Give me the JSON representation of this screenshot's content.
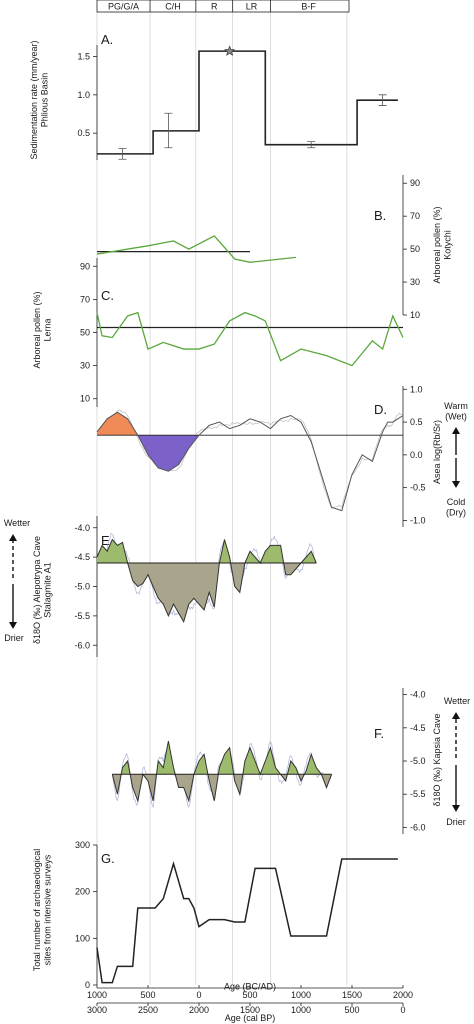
{
  "periods": [
    "PG/G/A",
    "C/H",
    "R",
    "LR",
    "B-F"
  ],
  "period_bounds_ad": [
    -1000,
    -480,
    -31,
    330,
    700,
    1450
  ],
  "x_axis": {
    "top_label": "Age (BC/AD)",
    "top_ticks": [
      "1000",
      "500",
      "0",
      "500",
      "1000",
      "1500",
      "2000"
    ],
    "top_tick_values_ad": [
      -1000,
      -500,
      0,
      500,
      1000,
      1500,
      2000
    ],
    "bottom_label": "Age (cal BP)",
    "bottom_ticks": [
      "3000",
      "2500",
      "2000",
      "1500",
      "1000",
      "500",
      "0"
    ]
  },
  "indicators": {
    "warm": "Warm\n(Wet)",
    "cold": "Cold\n(Dry)",
    "wetter": "Wetter",
    "drier": "Drier"
  },
  "colors": {
    "green_line": "#5aa83c",
    "green_fill": "#9cbb6c",
    "grey_fill": "#a8a58c",
    "warm_fill": "#f08a56",
    "cold_fill": "#7c62c8",
    "blue_trace": "#a7afd6"
  },
  "chart_data": [
    {
      "id": "A",
      "label": "A.",
      "type": "line",
      "ylabel": "Sedimentation rate (mm/year)\nPhlious Basin",
      "yticks": [
        0.5,
        1.0,
        1.5
      ],
      "ytick_labels": [
        "0.5",
        "1.0",
        "1.5"
      ],
      "ylim": [
        0.15,
        1.65
      ],
      "steps": [
        {
          "x0": -1000,
          "x1": -450,
          "y": 0.23
        },
        {
          "x0": -450,
          "x1": 0,
          "y": 0.53
        },
        {
          "x0": 0,
          "x1": 650,
          "y": 1.57
        },
        {
          "x0": 650,
          "x1": 1550,
          "y": 0.35
        },
        {
          "x0": 1550,
          "x1": 1950,
          "y": 0.93
        }
      ],
      "errorbars": [
        {
          "x": -750,
          "y": 0.23,
          "lo": 0.16,
          "hi": 0.3
        },
        {
          "x": -300,
          "y": 0.53,
          "lo": 0.31,
          "hi": 0.76
        },
        {
          "x": 1100,
          "y": 0.35,
          "lo": 0.31,
          "hi": 0.39
        },
        {
          "x": 1800,
          "y": 0.93,
          "lo": 0.86,
          "hi": 1.0
        }
      ],
      "marker": {
        "x": 300,
        "y": 1.57
      }
    },
    {
      "id": "B",
      "label": "B.",
      "type": "line",
      "ylabel": "Arboreal pollen (%)\nKotychi",
      "yticks": [
        10,
        30,
        50,
        70,
        90
      ],
      "ytick_labels": [
        "10",
        "30",
        "50",
        "70",
        "90"
      ],
      "ylim": [
        10,
        95
      ],
      "x": [
        -1000,
        -500,
        -250,
        -100,
        150,
        350,
        500,
        950
      ],
      "y": [
        47,
        52,
        55,
        50,
        58,
        44,
        42,
        45
      ],
      "hline": 48.5
    },
    {
      "id": "C",
      "label": "C.",
      "type": "line",
      "ylabel": "Arboreal pollen (%)\nLerna",
      "yticks": [
        10,
        30,
        50,
        70,
        90
      ],
      "ytick_labels": [
        "10",
        "30",
        "50",
        "70",
        "90"
      ],
      "ylim": [
        5,
        95
      ],
      "x": [
        -1000,
        -950,
        -850,
        -700,
        -600,
        -500,
        -350,
        -150,
        0,
        150,
        300,
        450,
        550,
        650,
        800,
        1000,
        1250,
        1500,
        1700,
        1800,
        1900,
        2000
      ],
      "y": [
        62,
        48,
        47,
        60,
        62,
        40,
        44,
        40,
        40,
        43,
        57,
        62,
        60,
        57,
        33,
        40,
        36,
        30,
        45,
        40,
        60,
        47
      ],
      "hline": 53
    },
    {
      "id": "D",
      "label": "D.",
      "type": "area",
      "ylabel": "Asea log(Rb/Sr)",
      "yticks": [
        -1.0,
        -0.5,
        0.0,
        0.5,
        1.0
      ],
      "ytick_labels": [
        "-1.0",
        "-0.5",
        "0.0",
        "0.5",
        "1.0"
      ],
      "ylim": [
        -1.1,
        1.05
      ],
      "x": [
        -1000,
        -900,
        -800,
        -700,
        -600,
        -500,
        -400,
        -300,
        -200,
        -100,
        0,
        100,
        200,
        300,
        400,
        500,
        600,
        700,
        800,
        900,
        1000,
        1100,
        1200,
        1300,
        1400,
        1500,
        1600,
        1700,
        1800,
        1850,
        1900,
        1950,
        2000
      ],
      "y": [
        0.35,
        0.55,
        0.65,
        0.55,
        0.3,
        0.0,
        -0.2,
        -0.25,
        -0.15,
        0.1,
        0.3,
        0.45,
        0.5,
        0.4,
        0.45,
        0.55,
        0.5,
        0.4,
        0.55,
        0.6,
        0.5,
        0.2,
        -0.3,
        -0.8,
        -0.85,
        -0.3,
        0.0,
        -0.1,
        0.35,
        0.5,
        0.5,
        0.55,
        0.6
      ],
      "hline": 0.3
    },
    {
      "id": "E",
      "label": "E.",
      "type": "area",
      "ylabel": "δ18O (‰) Alepotrypa Cave\nStalagmite A1",
      "yticks": [
        -6.0,
        -5.5,
        -5.0,
        -4.5,
        -4.0
      ],
      "ytick_labels": [
        "-6.0",
        "-5.5",
        "-5.0",
        "-4.5",
        "-4.0"
      ],
      "ylim": [
        -6.2,
        -3.8
      ],
      "x": [
        -1000,
        -950,
        -900,
        -850,
        -800,
        -750,
        -700,
        -650,
        -600,
        -550,
        -500,
        -450,
        -400,
        -350,
        -300,
        -250,
        -200,
        -150,
        -100,
        -50,
        0,
        50,
        100,
        150,
        200,
        250,
        300,
        350,
        400,
        450,
        500,
        550,
        600,
        650,
        700,
        750,
        800,
        850,
        900,
        950,
        1000,
        1050,
        1100,
        1150
      ],
      "y": [
        -4.5,
        -4.3,
        -4.4,
        -4.2,
        -4.3,
        -4.25,
        -4.6,
        -4.9,
        -5.0,
        -4.95,
        -4.8,
        -5.0,
        -5.2,
        -5.3,
        -5.5,
        -5.3,
        -5.45,
        -5.6,
        -5.3,
        -5.2,
        -5.3,
        -5.4,
        -5.1,
        -5.35,
        -4.6,
        -4.2,
        -4.5,
        -5.0,
        -5.1,
        -4.6,
        -4.4,
        -4.5,
        -4.6,
        -4.4,
        -4.3,
        -4.3,
        -4.3,
        -4.8,
        -4.8,
        -4.7,
        -4.6,
        -4.5,
        -4.4,
        -4.6
      ],
      "hline": -4.6
    },
    {
      "id": "F",
      "label": "F.",
      "type": "area",
      "ylabel": "δ18O (‰) Kapsia Cave",
      "yticks": [
        -6.0,
        -5.5,
        -5.0,
        -4.5,
        -4.0
      ],
      "ytick_labels": [
        "-6.0",
        "-5.5",
        "-5.0",
        "-4.5",
        "-4.0"
      ],
      "ylim": [
        -6.1,
        -3.9
      ],
      "x": [
        -850,
        -800,
        -750,
        -700,
        -650,
        -600,
        -550,
        -500,
        -450,
        -400,
        -350,
        -300,
        -250,
        -200,
        -150,
        -100,
        -50,
        0,
        50,
        100,
        150,
        200,
        250,
        300,
        350,
        400,
        450,
        500,
        550,
        600,
        650,
        700,
        750,
        800,
        850,
        900,
        950,
        1000,
        1050,
        1100,
        1150,
        1200,
        1250,
        1300
      ],
      "y": [
        -5.2,
        -5.5,
        -5.1,
        -5.0,
        -5.4,
        -5.6,
        -5.2,
        -5.3,
        -5.6,
        -5.0,
        -5.1,
        -4.7,
        -5.1,
        -5.4,
        -5.4,
        -5.6,
        -5.2,
        -5.0,
        -4.9,
        -5.3,
        -5.6,
        -5.1,
        -4.9,
        -4.8,
        -5.3,
        -5.5,
        -5.0,
        -4.8,
        -5.0,
        -5.2,
        -5.0,
        -4.8,
        -5.1,
        -5.2,
        -5.3,
        -5.0,
        -5.1,
        -5.3,
        -5.15,
        -4.9,
        -5.1,
        -5.2,
        -5.4,
        -5.2
      ],
      "hline": -5.2
    },
    {
      "id": "G",
      "label": "G.",
      "type": "line",
      "ylabel": "Total number of archaeological\nsites from intensive surveys",
      "yticks": [
        0,
        100,
        200,
        300
      ],
      "ytick_labels": [
        "0",
        "100",
        "200",
        "300"
      ],
      "ylim": [
        0,
        300
      ],
      "x": [
        -1000,
        -950,
        -850,
        -800,
        -650,
        -600,
        -430,
        -350,
        -250,
        -150,
        -100,
        -50,
        0,
        100,
        250,
        350,
        450,
        550,
        750,
        900,
        950,
        1050,
        1250,
        1400,
        1500,
        1650,
        1950
      ],
      "y": [
        80,
        5,
        5,
        40,
        40,
        165,
        165,
        185,
        260,
        185,
        185,
        165,
        125,
        140,
        140,
        135,
        135,
        250,
        250,
        105,
        105,
        105,
        105,
        270,
        270,
        270,
        270
      ]
    }
  ]
}
